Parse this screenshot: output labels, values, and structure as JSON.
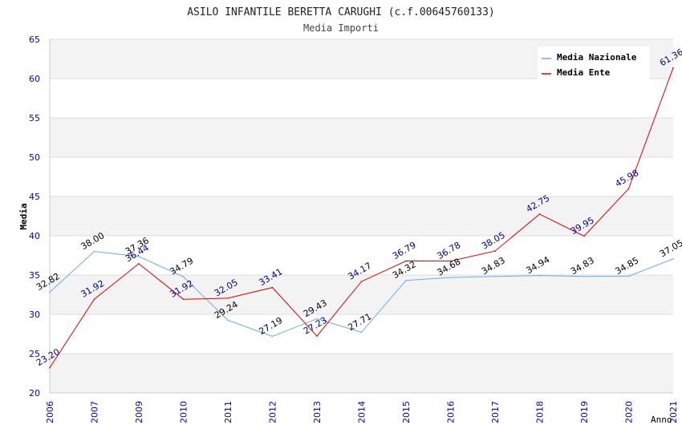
{
  "chart_data": {
    "type": "line",
    "title": "ASILO INFANTILE BERETTA CARUGHI (c.f.00645760133)",
    "subtitle": "Media Importi",
    "ylabel": "Media",
    "xlabel": "Anno",
    "categories": [
      "2006",
      "2007",
      "2009",
      "2010",
      "2011",
      "2012",
      "2013",
      "2014",
      "2015",
      "2016",
      "2017",
      "2018",
      "2019",
      "2020",
      "2021"
    ],
    "ylim": [
      20,
      65
    ],
    "yticks": [
      "20",
      "25",
      "30",
      "35",
      "40",
      "45",
      "50",
      "55",
      "60",
      "65"
    ],
    "grid": true,
    "legend_position": "top-right",
    "series": [
      {
        "name": "Media Nazionale",
        "color": "#6aaee8",
        "label_color": "#000000",
        "values": [
          32.82,
          38.0,
          37.36,
          34.79,
          29.24,
          27.19,
          29.43,
          27.71,
          34.32,
          34.68,
          34.83,
          34.94,
          34.83,
          34.85,
          37.05
        ],
        "labels": [
          "32.82",
          "38.00",
          "37.36",
          "34.79",
          "29.24",
          "27.19",
          "29.43",
          "27.71",
          "34.32",
          "34.68",
          "34.83",
          "34.94",
          "34.83",
          "34.85",
          "37.05"
        ]
      },
      {
        "name": "Media Ente",
        "color": "#dd0000",
        "label_color": "#00008b",
        "values": [
          23.2,
          31.92,
          36.44,
          31.92,
          32.05,
          33.41,
          27.23,
          34.17,
          36.79,
          36.78,
          38.05,
          42.75,
          39.95,
          45.98,
          61.36
        ],
        "labels": [
          "23.20",
          "31.92",
          "36.44",
          "31.92",
          "32.05",
          "33.41",
          "27.23",
          "34.17",
          "36.79",
          "36.78",
          "38.05",
          "42.75",
          "39.95",
          "45.98",
          "61.36"
        ]
      }
    ]
  },
  "colors": {
    "axis_tick_text": "#0000cc",
    "band_fill": "#f3f3f3",
    "grid_line": "#dddddd",
    "axis_line": "#cccccc"
  }
}
